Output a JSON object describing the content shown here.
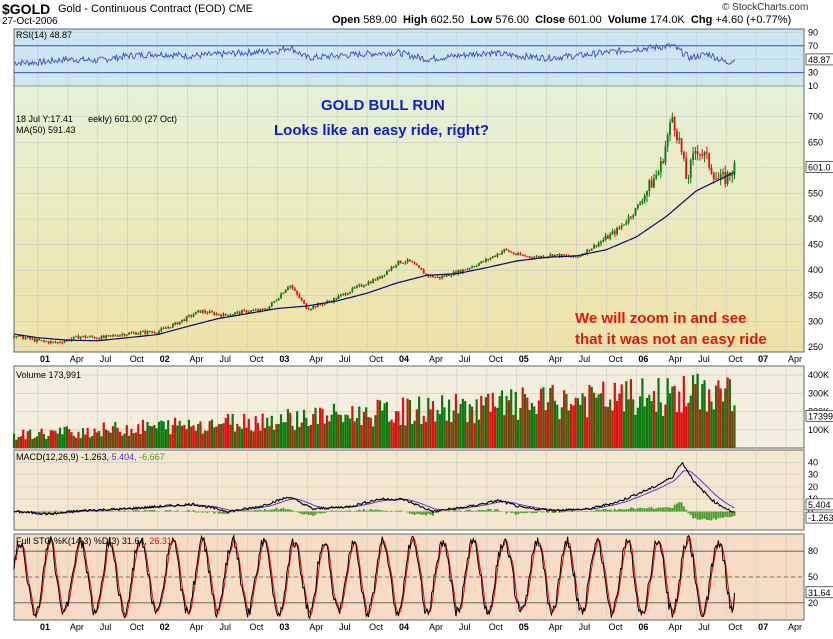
{
  "header": {
    "symbol": "$GOLD",
    "name": "Gold - Continuous Contract (EOD)",
    "exchange": "CME",
    "date": "27-Oct-2006",
    "open": "589.00",
    "high": "602.50",
    "low": "576.00",
    "close": "601.00",
    "volume": "174.0K",
    "change": "+4.60 (+0.77%)",
    "brand": "© StockCharts.com"
  },
  "labels": {
    "open_label": "Open",
    "high_label": "High",
    "low_label": "Low",
    "close_label": "Close",
    "volume_label": "Volume",
    "chg_label": "Chg",
    "rsi_legend": "RSI(14) 48.87",
    "price_legend_a": "18 Jul Y:17.41",
    "price_legend_b": "eekly) 601.00 (27 Oct)",
    "ma_legend": "MA(50) 591.43",
    "volume_legend": "Volume 173,991",
    "macd_legend_a": "MACD(12,26,9) -1.263,",
    "macd_legend_b": "5.404,",
    "macd_legend_c": "-6.667",
    "sto_legend_a": "Full STO %K(14,3) %D(3) 31.64,",
    "sto_legend_b": "26.31",
    "annotation_title": "GOLD BULL RUN",
    "annotation_sub": "Looks like an easy ride, right?",
    "annotation_red_1": "We will zoom in and see",
    "annotation_red_2": "that it was not an easy ride",
    "price_tag": "601.0",
    "rsi_tag": "48.87",
    "volume_tag": "173991",
    "macd_tag_1": "5.404",
    "macd_tag_2": "-1.263",
    "macd_tag_3": "-6.667",
    "sto_tag_1": "31.64",
    "sto_tag_2": "26.31"
  },
  "colors": {
    "rsi_bg": "#cde6f3",
    "price_bg_top": "#e6f2d6",
    "price_bg_bottom": "#efe2a8",
    "volume_bg": "#f4eede",
    "macd_bg": "#f4e6cf",
    "sto_bg": "#f6dcc5",
    "up": "#0a7a0a",
    "down": "#dd1010",
    "ma": "#0a0a6a",
    "rsi_line": "#3b4fc8",
    "macd_line": "#000000",
    "signal_line": "#5a3ad0",
    "histogram": "#4a9e2a",
    "k_line": "#000000",
    "d_line": "#e11010"
  },
  "chart_data": [
    {
      "panel": "rsi",
      "type": "line",
      "name": "RSI(14)",
      "ylim": [
        10,
        95
      ],
      "yticks": [
        90,
        70,
        50,
        30,
        10
      ],
      "reference_lines": [
        70,
        30
      ],
      "last_value": 48.87,
      "x": [
        2001.0,
        2001.25,
        2001.5,
        2001.75,
        2002.0,
        2002.25,
        2002.5,
        2002.75,
        2003.0,
        2003.1,
        2003.25,
        2003.5,
        2003.75,
        2004.0,
        2004.25,
        2004.5,
        2004.75,
        2005.0,
        2005.25,
        2005.5,
        2005.75,
        2006.0,
        2006.3,
        2006.45,
        2006.6,
        2006.75,
        2006.82
      ],
      "values": [
        45,
        50,
        48,
        55,
        58,
        55,
        57,
        60,
        62,
        68,
        52,
        55,
        58,
        60,
        50,
        55,
        60,
        55,
        52,
        55,
        60,
        65,
        70,
        52,
        58,
        45,
        49
      ]
    },
    {
      "panel": "price",
      "type": "candlestick+line",
      "title": "GOLD BULL RUN",
      "ylim": [
        240,
        760
      ],
      "yticks": [
        700,
        650,
        600,
        550,
        500,
        450,
        400,
        350,
        300,
        250
      ],
      "x_tick_labels": [
        "01",
        "Apr",
        "Jul",
        "Oct",
        "02",
        "Apr",
        "Jul",
        "Oct",
        "03",
        "Apr",
        "Jul",
        "Oct",
        "04",
        "Apr",
        "Jul",
        "Oct",
        "05",
        "Apr",
        "Jul",
        "Oct",
        "06",
        "Apr",
        "Jul",
        "Oct",
        "07",
        "Apr"
      ],
      "x_ticks": [
        2001.0,
        2001.25,
        2001.5,
        2001.75,
        2002.0,
        2002.25,
        2002.5,
        2002.75,
        2003.0,
        2003.25,
        2003.5,
        2003.75,
        2004.0,
        2004.25,
        2004.5,
        2004.75,
        2005.0,
        2005.25,
        2005.5,
        2005.75,
        2006.0,
        2006.25,
        2006.5,
        2006.75,
        2007.0,
        2007.25
      ],
      "series": [
        {
          "name": "Gold close",
          "x": [
            2000.8,
            2001.0,
            2001.15,
            2001.35,
            2001.55,
            2001.7,
            2001.85,
            2002.0,
            2002.15,
            2002.35,
            2002.55,
            2002.75,
            2002.9,
            2003.0,
            2003.1,
            2003.25,
            2003.45,
            2003.65,
            2003.85,
            2004.0,
            2004.1,
            2004.25,
            2004.35,
            2004.55,
            2004.75,
            2004.9,
            2005.0,
            2005.15,
            2005.3,
            2005.5,
            2005.7,
            2005.85,
            2006.0,
            2006.1,
            2006.2,
            2006.3,
            2006.36,
            2006.42,
            2006.5,
            2006.58,
            2006.68,
            2006.75,
            2006.82
          ],
          "values": [
            272,
            262,
            258,
            270,
            268,
            275,
            278,
            280,
            295,
            320,
            312,
            320,
            322,
            345,
            372,
            325,
            340,
            365,
            385,
            415,
            418,
            390,
            385,
            400,
            420,
            440,
            430,
            425,
            430,
            425,
            455,
            480,
            520,
            560,
            600,
            700,
            650,
            575,
            640,
            620,
            575,
            580,
            601
          ]
        },
        {
          "name": "MA(50)",
          "x": [
            2000.8,
            2001.0,
            2001.25,
            2001.5,
            2001.75,
            2002.0,
            2002.25,
            2002.5,
            2002.75,
            2003.0,
            2003.25,
            2003.5,
            2003.75,
            2004.0,
            2004.25,
            2004.5,
            2004.75,
            2005.0,
            2005.25,
            2005.5,
            2005.75,
            2006.0,
            2006.25,
            2006.5,
            2006.82
          ],
          "values": [
            275,
            268,
            263,
            262,
            268,
            274,
            290,
            305,
            315,
            325,
            330,
            340,
            355,
            375,
            390,
            393,
            405,
            418,
            425,
            428,
            440,
            465,
            505,
            555,
            591.43
          ]
        }
      ]
    },
    {
      "panel": "volume",
      "type": "bar",
      "name": "Volume",
      "ylim": [
        0,
        450
      ],
      "yticks_label": [
        "400K",
        "300K",
        "200K",
        "100K"
      ],
      "yticks": [
        400,
        300,
        200,
        100
      ],
      "last_value_k": 173.991
    },
    {
      "panel": "macd",
      "type": "line",
      "series_names": [
        "MACD(12,26,9)",
        "signal",
        "histogram"
      ],
      "ylim": [
        -15,
        50
      ],
      "yticks": [
        40,
        30,
        20,
        10,
        0
      ],
      "last_values": {
        "macd": -1.263,
        "signal": 5.404,
        "histogram": -6.667
      },
      "x": [
        2000.8,
        2001.1,
        2001.4,
        2001.7,
        2002.0,
        2002.3,
        2002.6,
        2002.85,
        2003.1,
        2003.3,
        2003.6,
        2003.85,
        2004.05,
        2004.3,
        2004.6,
        2004.85,
        2005.05,
        2005.3,
        2005.6,
        2005.85,
        2006.0,
        2006.15,
        2006.3,
        2006.38,
        2006.5,
        2006.65,
        2006.82
      ],
      "values": [
        0,
        -2,
        1,
        2,
        4,
        6,
        0,
        4,
        12,
        2,
        4,
        10,
        10,
        0,
        4,
        9,
        3,
        1,
        2,
        8,
        14,
        20,
        28,
        40,
        22,
        8,
        -1.3
      ]
    },
    {
      "panel": "stochastic",
      "type": "line",
      "series_names": [
        "%K(14,3)",
        "%D(3)"
      ],
      "ylim": [
        0,
        100
      ],
      "yticks": [
        80,
        50,
        20
      ],
      "last_values": {
        "k": 31.64,
        "d": 26.31
      }
    }
  ]
}
